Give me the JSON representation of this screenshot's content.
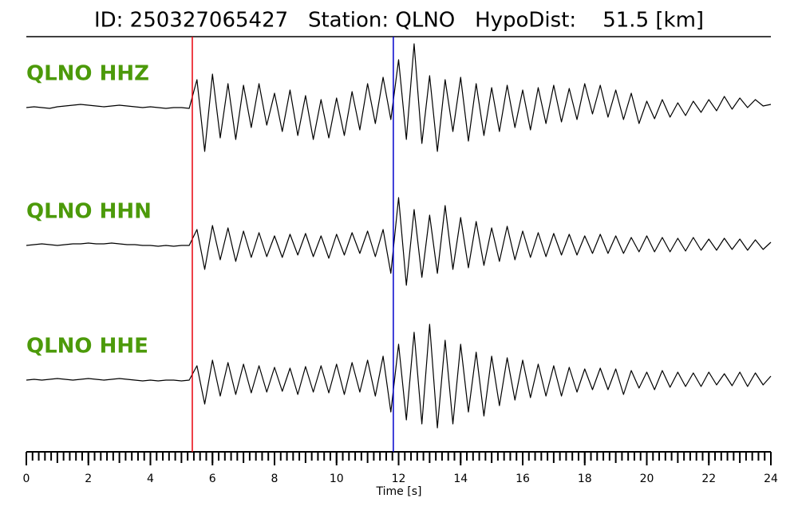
{
  "chart_data": {
    "type": "line",
    "title": "ID: 250327065427   Station: QLNO   HypoDist:    51.5 [km]",
    "xlabel": "Time [s]",
    "xlim": [
      0,
      24
    ],
    "xticks": [
      0,
      2,
      4,
      6,
      8,
      10,
      12,
      14,
      16,
      18,
      20,
      22,
      24
    ],
    "xminor_step": 0.2,
    "label_color": "#4c9a0a",
    "x": [
      0,
      0.25,
      0.5,
      0.75,
      1,
      1.25,
      1.5,
      1.75,
      2,
      2.25,
      2.5,
      2.75,
      3,
      3.25,
      3.5,
      3.75,
      4,
      4.25,
      4.5,
      4.75,
      5,
      5.25,
      5.5,
      5.75,
      6,
      6.25,
      6.5,
      6.75,
      7,
      7.25,
      7.5,
      7.75,
      8,
      8.25,
      8.5,
      8.75,
      9,
      9.25,
      9.5,
      9.75,
      10,
      10.25,
      10.5,
      10.75,
      11,
      11.25,
      11.5,
      11.75,
      12,
      12.25,
      12.5,
      12.75,
      13,
      13.25,
      13.5,
      13.75,
      14,
      14.25,
      14.5,
      14.75,
      15,
      15.25,
      15.5,
      15.75,
      16,
      16.25,
      16.5,
      16.75,
      17,
      17.25,
      17.5,
      17.75,
      18,
      18.25,
      18.5,
      18.75,
      19,
      19.25,
      19.5,
      19.75,
      20,
      20.25,
      20.5,
      20.75,
      21,
      21.25,
      21.5,
      21.75,
      22,
      22.25,
      22.5,
      22.75,
      23,
      23.25,
      23.5,
      23.75,
      24
    ],
    "series": [
      {
        "name": "QLNO HHZ",
        "color": "#000000",
        "values": [
          0,
          1,
          0,
          -1,
          1,
          2,
          3,
          4,
          3,
          2,
          1,
          2,
          3,
          2,
          1,
          0,
          1,
          0,
          -1,
          0,
          0,
          -1,
          35,
          -55,
          42,
          -38,
          30,
          -40,
          28,
          -25,
          30,
          -22,
          18,
          -30,
          22,
          -35,
          15,
          -40,
          10,
          -38,
          12,
          -35,
          20,
          -28,
          30,
          -20,
          38,
          -15,
          60,
          -40,
          80,
          -45,
          40,
          -55,
          35,
          -30,
          38,
          -42,
          30,
          -35,
          25,
          -30,
          28,
          -25,
          22,
          -28,
          25,
          -20,
          28,
          -18,
          24,
          -15,
          30,
          -8,
          28,
          -12,
          22,
          -15,
          18,
          -20,
          8,
          -14,
          10,
          -12,
          6,
          -10,
          8,
          -6,
          10,
          -4,
          14,
          -2,
          12,
          0,
          10,
          2,
          4
        ]
      },
      {
        "name": "QLNO HHN",
        "color": "#000000",
        "values": [
          0,
          1,
          2,
          1,
          0,
          1,
          2,
          2,
          3,
          2,
          2,
          3,
          2,
          1,
          1,
          0,
          0,
          -1,
          0,
          -1,
          0,
          0,
          20,
          -30,
          25,
          -18,
          22,
          -20,
          18,
          -15,
          16,
          -14,
          12,
          -15,
          14,
          -12,
          15,
          -14,
          12,
          -16,
          14,
          -12,
          16,
          -10,
          18,
          -14,
          20,
          -35,
          60,
          -50,
          45,
          -40,
          38,
          -35,
          50,
          -30,
          35,
          -28,
          30,
          -25,
          22,
          -20,
          24,
          -18,
          18,
          -15,
          16,
          -14,
          15,
          -12,
          14,
          -12,
          12,
          -10,
          14,
          -10,
          12,
          -10,
          10,
          -8,
          12,
          -8,
          10,
          -8,
          9,
          -7,
          10,
          -6,
          8,
          -6,
          9,
          -5,
          8,
          -6,
          7,
          -5,
          4
        ]
      },
      {
        "name": "QLNO HHE",
        "color": "#000000",
        "values": [
          0,
          1,
          0,
          1,
          2,
          1,
          0,
          1,
          2,
          1,
          0,
          1,
          2,
          1,
          0,
          -1,
          0,
          -1,
          0,
          0,
          -1,
          0,
          18,
          -30,
          25,
          -20,
          22,
          -18,
          20,
          -16,
          18,
          -15,
          16,
          -14,
          15,
          -18,
          17,
          -15,
          18,
          -16,
          20,
          -18,
          22,
          -15,
          25,
          -20,
          30,
          -40,
          45,
          -50,
          60,
          -55,
          70,
          -60,
          50,
          -55,
          45,
          -40,
          35,
          -45,
          30,
          -32,
          28,
          -25,
          25,
          -22,
          20,
          -20,
          18,
          -20,
          16,
          -15,
          14,
          -12,
          15,
          -12,
          14,
          -18,
          12,
          -10,
          10,
          -12,
          12,
          -9,
          10,
          -8,
          9,
          -8,
          10,
          -6,
          8,
          -7,
          10,
          -8,
          9,
          -6,
          5
        ]
      }
    ],
    "vlines": [
      {
        "x": 5.35,
        "color": "#e8000b"
      },
      {
        "x": 11.83,
        "color": "#0000cc"
      }
    ]
  }
}
